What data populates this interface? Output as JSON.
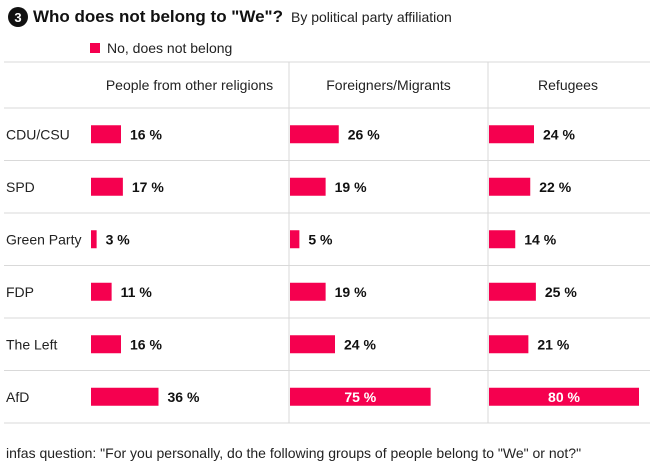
{
  "figure_number": "3",
  "title": "Who does not belong to \"We\"?",
  "subtitle": "By political party affiliation",
  "legend": {
    "label": "No, does not belong"
  },
  "footnote": "infas question: \"For you personally, do the following groups of people belong to \"We\" or not?\"",
  "colors": {
    "bar": "#f5004f",
    "grid": "#d9d9d9",
    "text": "#111111",
    "inside_label": "#ffffff"
  },
  "chart_data": {
    "type": "bar",
    "orientation": "horizontal",
    "value_suffix": " %",
    "panels": [
      "People from other religions",
      "Foreigners/Migrants",
      "Refugees"
    ],
    "categories": [
      "CDU/CSU",
      "SPD",
      "Green Party",
      "FDP",
      "The Left",
      "AfD"
    ],
    "series": [
      {
        "name": "No, does not belong",
        "panel": "People from other religions",
        "values": [
          16,
          17,
          3,
          11,
          16,
          36
        ]
      },
      {
        "name": "No, does not belong",
        "panel": "Foreigners/Migrants",
        "values": [
          26,
          19,
          5,
          19,
          24,
          75
        ]
      },
      {
        "name": "No, does not belong",
        "panel": "Refugees",
        "values": [
          24,
          22,
          14,
          25,
          21,
          80
        ]
      }
    ],
    "xlim": [
      0,
      80
    ],
    "grid": true,
    "legend_position": "top-left"
  }
}
